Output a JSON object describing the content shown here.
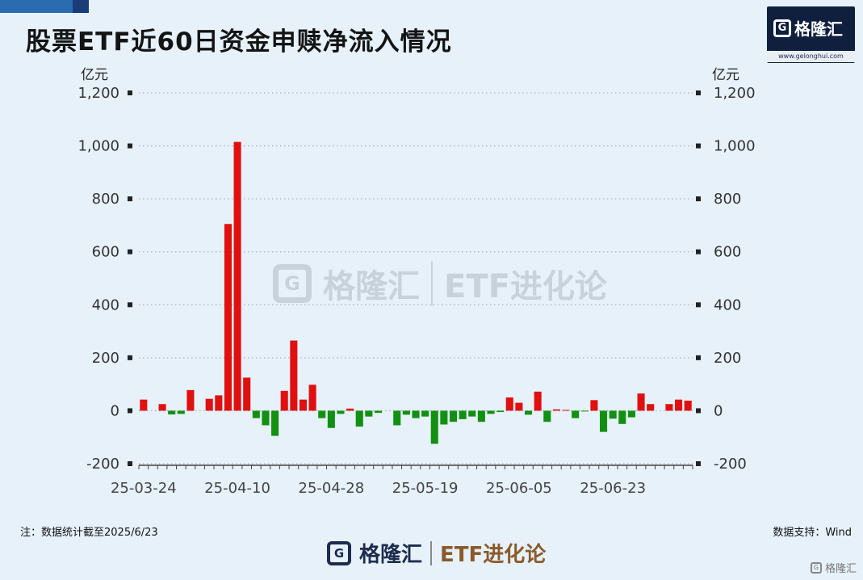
{
  "title": "股票ETF近60日资金申赎净流入情况",
  "logo": {
    "brand": "格隆汇",
    "url": "www.gelonghui.com",
    "icon": "g-logo-icon"
  },
  "watermark": {
    "brand": "格隆汇",
    "url": "www.gelonghui.com",
    "product": "ETF进化论"
  },
  "footnote": "注：数据统计截至2025/6/23",
  "source": "数据支持：Wind",
  "footer": {
    "brand": "格隆汇",
    "url": "www.gelonghui.com",
    "product": "ETF进化论"
  },
  "corner_mark": "格隆汇",
  "colors": {
    "positive": "#e01010",
    "negative": "#119011",
    "grid": "#a8b4c0",
    "axis": "#555555"
  },
  "chart_data": {
    "type": "bar",
    "title": "股票ETF近60日资金申赎净流入情况",
    "ylabel_left": "亿元",
    "ylabel_right": "亿元",
    "ylim": [
      -200,
      1200
    ],
    "yticks": [
      -200,
      0,
      200,
      400,
      600,
      800,
      1000,
      1200
    ],
    "ytick_labels": [
      "-200",
      "0",
      "200",
      "400",
      "600",
      "800",
      "1,000",
      "1,200"
    ],
    "xtick_labels": [
      "25-03-24",
      "25-04-10",
      "25-04-28",
      "25-05-19",
      "25-06-05",
      "25-06-23"
    ],
    "xtick_indices": [
      0,
      10,
      20,
      30,
      40,
      50
    ],
    "grid": true,
    "values": [
      42,
      0,
      25,
      -14,
      -12,
      78,
      0,
      45,
      58,
      705,
      1015,
      125,
      -28,
      -55,
      -95,
      75,
      265,
      42,
      98,
      -28,
      -65,
      -12,
      8,
      -60,
      -22,
      -8,
      0,
      -55,
      -15,
      -28,
      -22,
      -125,
      -52,
      -42,
      -32,
      -22,
      -42,
      -12,
      -5,
      50,
      30,
      -15,
      72,
      -42,
      5,
      3,
      -28,
      -3,
      40,
      -80,
      -30,
      -50,
      -25,
      65,
      25,
      0,
      25,
      42,
      38
    ]
  }
}
